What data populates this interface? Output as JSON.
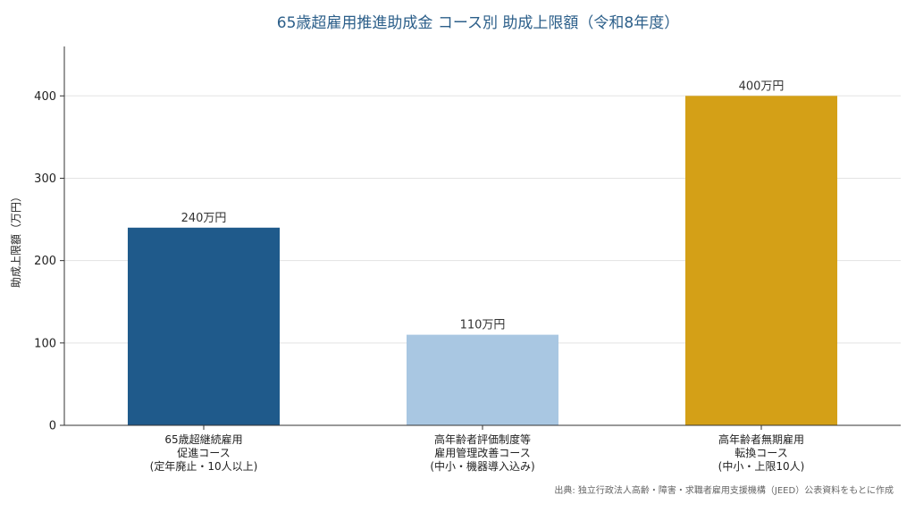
{
  "chart_data": {
    "type": "bar",
    "title": "65歳超雇用推進助成金 コース別 助成上限額（令和8年度）",
    "ylabel": "助成上限額（万円）",
    "xlabel": "",
    "ylim": [
      0,
      460
    ],
    "yticks": [
      0,
      100,
      200,
      300,
      400
    ],
    "grid": true,
    "categories": [
      [
        "65歳超継続雇用",
        "促進コース",
        "(定年廃止・10人以上)"
      ],
      [
        "高年齢者評価制度等",
        "雇用管理改善コース",
        "(中小・機器導入込み)"
      ],
      [
        "高年齢者無期雇用",
        "転換コース",
        "(中小・上限10人)"
      ]
    ],
    "values": [
      240,
      110,
      400
    ],
    "data_labels": [
      "240万円",
      "110万円",
      "400万円"
    ],
    "colors": [
      "#1f5a8b",
      "#a9c7e2",
      "#d4a017"
    ],
    "source": "出典: 独立行政法人高齢・障害・求職者雇用支援機構（JEED）公表資料をもとに作成"
  }
}
